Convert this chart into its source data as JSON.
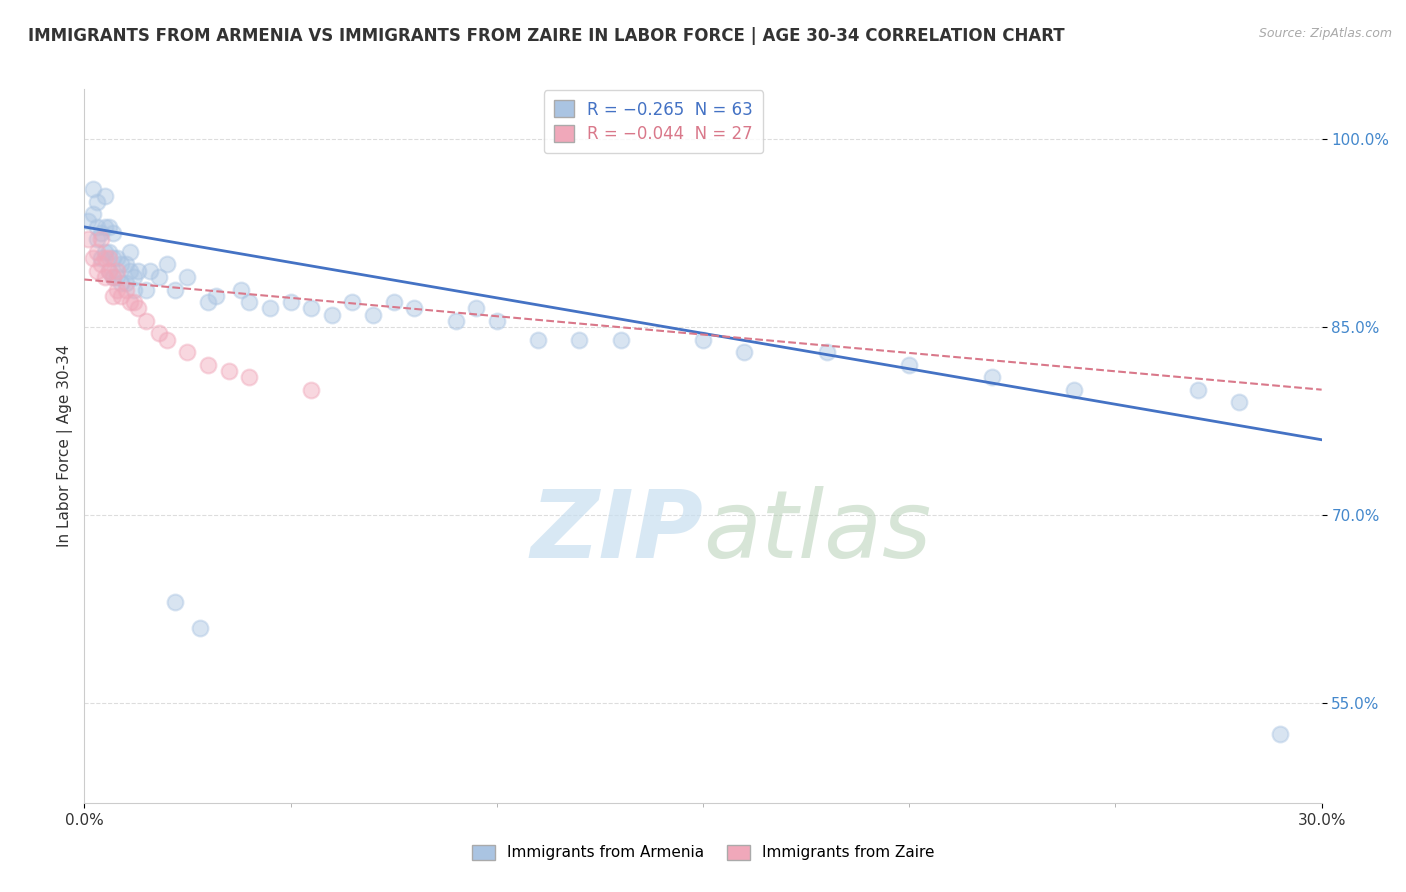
{
  "title": "IMMIGRANTS FROM ARMENIA VS IMMIGRANTS FROM ZAIRE IN LABOR FORCE | AGE 30-34 CORRELATION CHART",
  "source": "Source: ZipAtlas.com",
  "ylabel": "In Labor Force | Age 30-34",
  "y_ticks": [
    0.55,
    0.7,
    0.85,
    1.0
  ],
  "y_tick_labels": [
    "55.0%",
    "70.0%",
    "85.0%",
    "100.0%"
  ],
  "x_lim": [
    0.0,
    0.3
  ],
  "y_lim": [
    0.47,
    1.04
  ],
  "armenia_color": "#aac4e2",
  "zaire_color": "#f0a8ba",
  "armenia_line_color": "#4472c4",
  "zaire_line_color": "#d9788a",
  "legend_armenia_label": "R = −0.265  N = 63",
  "legend_zaire_label": "R = −0.044  N = 27",
  "legend_armenia_series": "Immigrants from Armenia",
  "legend_zaire_series": "Immigrants from Zaire",
  "watermark_zip": "ZIP",
  "watermark_atlas": "atlas",
  "armenia_line_x0": 0.0,
  "armenia_line_x1": 0.3,
  "armenia_line_y0": 0.93,
  "armenia_line_y1": 0.76,
  "zaire_line_x0": 0.0,
  "zaire_line_x1": 0.3,
  "zaire_line_y0": 0.888,
  "zaire_line_y1": 0.8,
  "background_color": "#ffffff",
  "grid_color": "#dddddd",
  "title_fontsize": 12,
  "axis_label_fontsize": 11,
  "tick_fontsize": 11,
  "marker_size": 130,
  "marker_alpha": 0.45,
  "armenia_points_x": [
    0.001,
    0.002,
    0.002,
    0.003,
    0.003,
    0.003,
    0.004,
    0.004,
    0.005,
    0.005,
    0.005,
    0.006,
    0.006,
    0.006,
    0.007,
    0.007,
    0.007,
    0.008,
    0.008,
    0.009,
    0.009,
    0.01,
    0.01,
    0.011,
    0.011,
    0.012,
    0.012,
    0.013,
    0.015,
    0.016,
    0.018,
    0.02,
    0.022,
    0.025,
    0.03,
    0.032,
    0.038,
    0.04,
    0.045,
    0.05,
    0.055,
    0.06,
    0.065,
    0.07,
    0.075,
    0.08,
    0.09,
    0.095,
    0.1,
    0.11,
    0.12,
    0.13,
    0.15,
    0.16,
    0.18,
    0.2,
    0.22,
    0.24,
    0.27,
    0.28,
    0.022,
    0.028,
    0.29
  ],
  "armenia_points_y": [
    0.935,
    0.94,
    0.96,
    0.92,
    0.93,
    0.95,
    0.905,
    0.925,
    0.91,
    0.93,
    0.955,
    0.895,
    0.91,
    0.93,
    0.89,
    0.905,
    0.925,
    0.89,
    0.905,
    0.885,
    0.9,
    0.885,
    0.9,
    0.895,
    0.91,
    0.88,
    0.89,
    0.895,
    0.88,
    0.895,
    0.89,
    0.9,
    0.88,
    0.89,
    0.87,
    0.875,
    0.88,
    0.87,
    0.865,
    0.87,
    0.865,
    0.86,
    0.87,
    0.86,
    0.87,
    0.865,
    0.855,
    0.865,
    0.855,
    0.84,
    0.84,
    0.84,
    0.84,
    0.83,
    0.83,
    0.82,
    0.81,
    0.8,
    0.8,
    0.79,
    0.63,
    0.61,
    0.525
  ],
  "zaire_points_x": [
    0.001,
    0.002,
    0.003,
    0.003,
    0.004,
    0.004,
    0.005,
    0.005,
    0.006,
    0.006,
    0.007,
    0.007,
    0.008,
    0.008,
    0.009,
    0.01,
    0.011,
    0.012,
    0.013,
    0.015,
    0.018,
    0.02,
    0.025,
    0.03,
    0.035,
    0.04,
    0.055
  ],
  "zaire_points_y": [
    0.92,
    0.905,
    0.895,
    0.91,
    0.9,
    0.92,
    0.89,
    0.905,
    0.895,
    0.905,
    0.875,
    0.89,
    0.88,
    0.895,
    0.875,
    0.88,
    0.87,
    0.87,
    0.865,
    0.855,
    0.845,
    0.84,
    0.83,
    0.82,
    0.815,
    0.81,
    0.8
  ]
}
